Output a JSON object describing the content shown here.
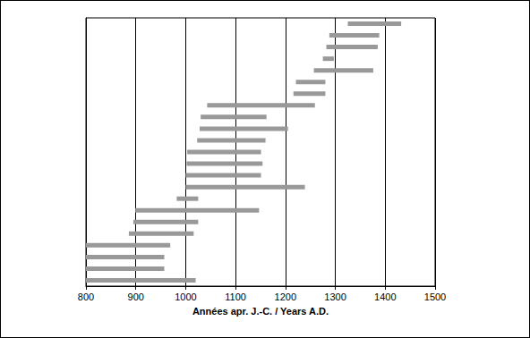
{
  "chart_data": {
    "type": "range_bar",
    "orientation": "horizontal",
    "x_label": "Années apr. J.-C. / Years A.D.",
    "values": [
      [
        1325,
        1432
      ],
      [
        1288,
        1388
      ],
      [
        1282,
        1385
      ],
      [
        1275,
        1297
      ],
      [
        1257,
        1376
      ],
      [
        1221,
        1280
      ],
      [
        1216,
        1280
      ],
      [
        1043,
        1259
      ],
      [
        1030,
        1162
      ],
      [
        1028,
        1205
      ],
      [
        1023,
        1160
      ],
      [
        1003,
        1151
      ],
      [
        1002,
        1154
      ],
      [
        1000,
        1151
      ],
      [
        1000,
        1239
      ],
      [
        982,
        1025
      ],
      [
        899,
        1147
      ],
      [
        895,
        1025
      ],
      [
        886,
        1016
      ],
      [
        800,
        969
      ],
      [
        800,
        957
      ],
      [
        800,
        957
      ],
      [
        800,
        1020
      ]
    ],
    "color": "#999999",
    "xlim": [
      800,
      1500
    ],
    "xticks": [
      800,
      900,
      1000,
      1100,
      1200,
      1300,
      1400,
      1500
    ],
    "grid": true,
    "tick_labels": "x"
  }
}
